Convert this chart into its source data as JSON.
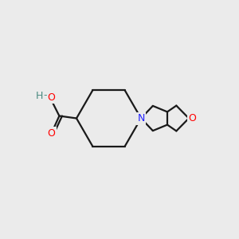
{
  "background_color": "#ebebeb",
  "bond_color": "#1a1a1a",
  "N_color": "#2020ff",
  "O_color": "#ff0000",
  "H_color": "#4a8a80",
  "line_width": 1.6,
  "figsize": [
    3.0,
    3.0
  ],
  "dpi": 100,
  "xlim": [
    0,
    10
  ],
  "ylim": [
    0,
    10
  ]
}
